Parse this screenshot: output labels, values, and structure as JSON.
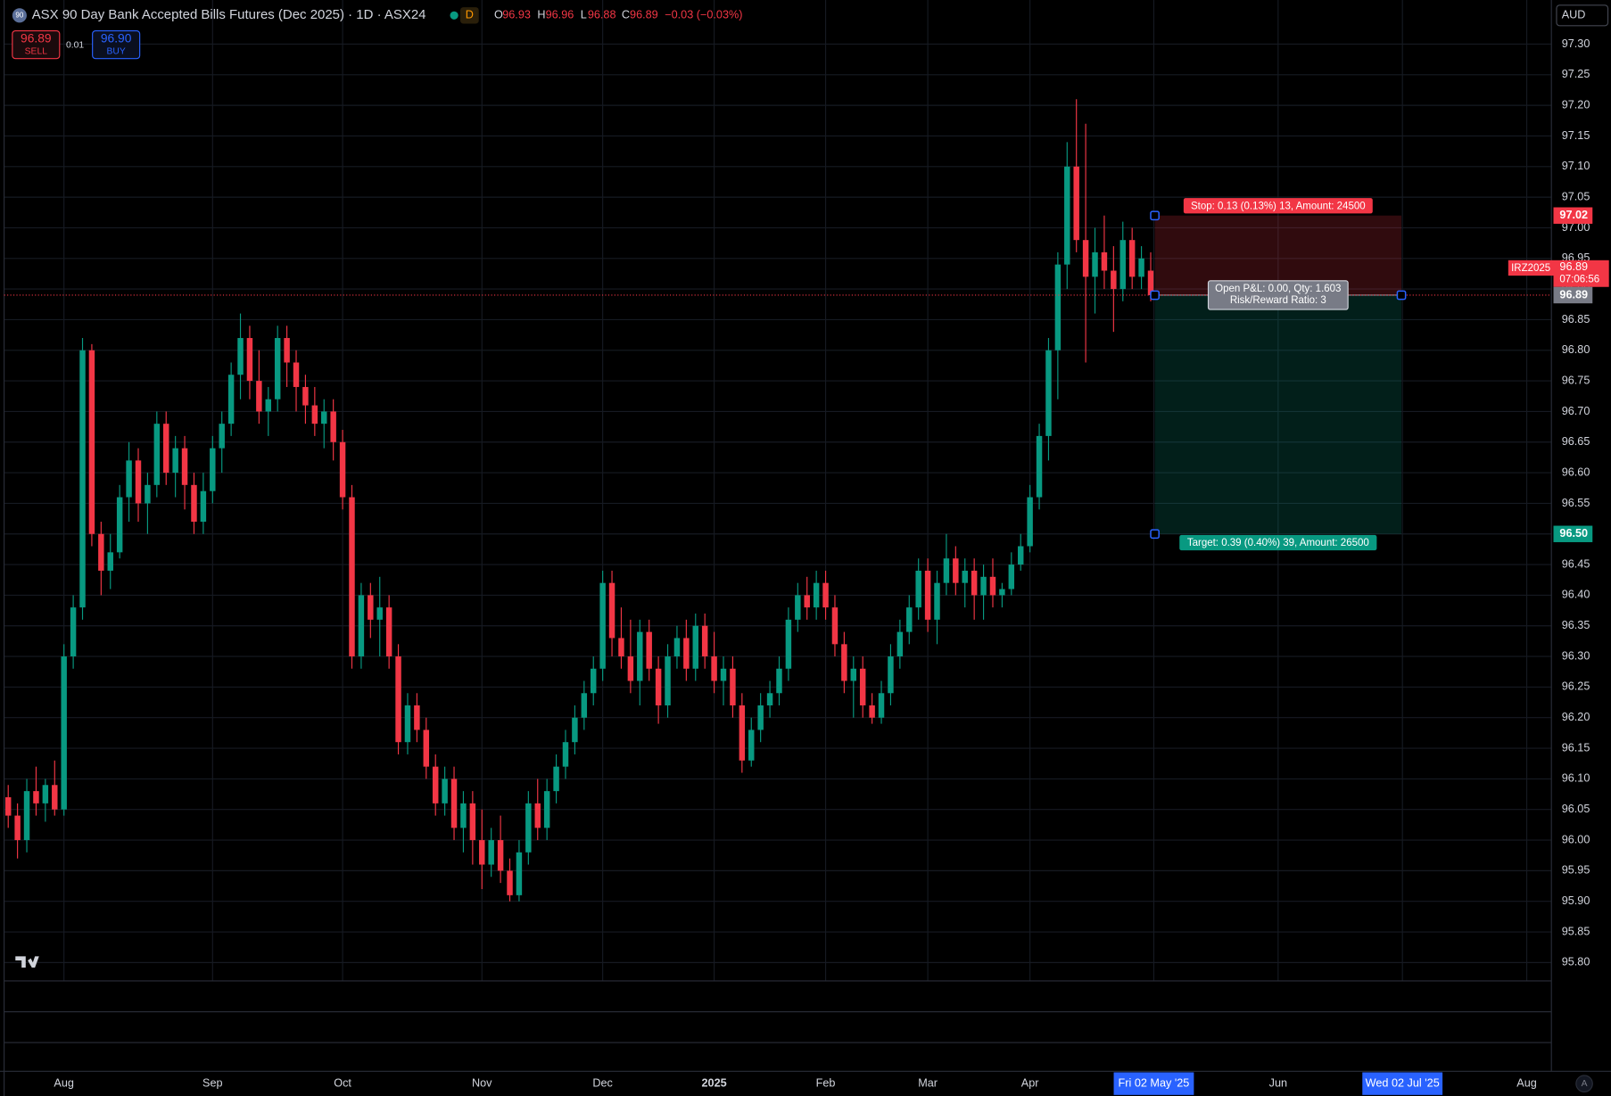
{
  "header": {
    "icon": "90",
    "title": "ASX 90 Day Bank Accepted Bills Futures (Dec 2025) · 1D · ASX24",
    "badge": "D",
    "ohlc": [
      {
        "label": "O",
        "value": "96.93"
      },
      {
        "label": "H",
        "value": "96.96"
      },
      {
        "label": "L",
        "value": "96.88"
      },
      {
        "label": "C",
        "value": "96.89"
      }
    ],
    "change": "−0.03 (−0.03%)",
    "sell": {
      "price": "96.89",
      "label": "SELL"
    },
    "spread": "0.01",
    "buy": {
      "price": "96.90",
      "label": "BUY"
    },
    "currency": "AUD"
  },
  "controls": {
    "auto": "A"
  },
  "chart_data": {
    "type": "candlestick",
    "colors": {
      "up": "#089981",
      "down": "#f23645"
    },
    "grid": true,
    "ylim": [
      95.77,
      97.372
    ],
    "yticks": [
      {
        "value": 95.8,
        "label": "95.80"
      },
      95.85,
      {
        "value": 95.9,
        "label": "95.90"
      },
      95.95,
      {
        "value": 96,
        "label": "96.00"
      },
      96.05,
      {
        "value": 96.1,
        "label": "96.10"
      },
      96.15,
      {
        "value": 96.2,
        "label": "96.20"
      },
      96.25,
      {
        "value": 96.3,
        "label": "96.30"
      },
      96.35,
      {
        "value": 96.4,
        "label": "96.40"
      },
      96.45,
      {
        "value": 96.5,
        "label": "96.50"
      },
      96.55,
      {
        "value": 96.6,
        "label": "96.60"
      },
      96.65,
      {
        "value": 96.7,
        "label": "96.70"
      },
      96.75,
      {
        "value": 96.8,
        "label": "96.80"
      },
      96.85,
      {
        "value": 96.9,
        "label": "96.90"
      },
      96.95,
      {
        "value": 97,
        "label": "97.00"
      },
      97.05,
      {
        "value": 97.1,
        "label": "97.10"
      },
      97.15,
      {
        "value": 97.2,
        "label": "97.20"
      },
      97.25,
      {
        "value": 97.3,
        "label": "97.30"
      }
    ],
    "groups": [
      {
        "label": null,
        "candles": [
          [
            96.07,
            96.09,
            96.02,
            96.04
          ],
          [
            96.04,
            96.06,
            95.97,
            96.0
          ],
          [
            96.0,
            96.1,
            95.98,
            96.08
          ],
          [
            96.08,
            96.12,
            96.04,
            96.06
          ],
          [
            96.06,
            96.1,
            96.03,
            96.09
          ],
          [
            96.09,
            96.13,
            96.04,
            96.05
          ]
        ]
      },
      {
        "label": "Aug",
        "candles": [
          [
            96.05,
            96.32,
            96.04,
            96.3
          ],
          [
            96.3,
            96.4,
            96.28,
            96.38
          ],
          [
            96.38,
            96.82,
            96.36,
            96.8
          ],
          [
            96.8,
            96.81,
            96.48,
            96.5
          ],
          [
            96.5,
            96.52,
            96.4,
            96.44
          ],
          [
            96.44,
            96.5,
            96.41,
            96.47
          ],
          [
            96.47,
            96.58,
            96.46,
            96.56
          ],
          [
            96.56,
            96.65,
            96.52,
            96.62
          ],
          [
            96.62,
            96.64,
            96.52,
            96.55
          ],
          [
            96.55,
            96.6,
            96.5,
            96.58
          ],
          [
            96.58,
            96.7,
            96.56,
            96.68
          ],
          [
            96.68,
            96.7,
            96.58,
            96.6
          ],
          [
            96.6,
            96.66,
            96.56,
            96.64
          ],
          [
            96.64,
            96.66,
            96.54,
            96.58
          ],
          [
            96.58,
            96.6,
            96.5,
            96.52
          ],
          [
            96.52,
            96.6,
            96.5,
            96.57
          ]
        ]
      },
      {
        "label": "Sep",
        "candles": [
          [
            96.57,
            96.66,
            96.55,
            96.64
          ],
          [
            96.64,
            96.7,
            96.6,
            96.68
          ],
          [
            96.68,
            96.78,
            96.66,
            96.76
          ],
          [
            96.76,
            96.86,
            96.72,
            96.82
          ],
          [
            96.82,
            96.84,
            96.72,
            96.75
          ],
          [
            96.75,
            96.8,
            96.68,
            96.7
          ],
          [
            96.7,
            96.74,
            96.66,
            96.72
          ],
          [
            96.72,
            96.84,
            96.7,
            96.82
          ],
          [
            96.82,
            96.84,
            96.74,
            96.78
          ],
          [
            96.78,
            96.8,
            96.7,
            96.74
          ],
          [
            96.74,
            96.76,
            96.68,
            96.71
          ],
          [
            96.71,
            96.74,
            96.66,
            96.68
          ],
          [
            96.68,
            96.72,
            96.64,
            96.7
          ],
          [
            96.7,
            96.72,
            96.62,
            96.65
          ]
        ]
      },
      {
        "label": "Oct",
        "candles": [
          [
            96.65,
            96.67,
            96.54,
            96.56
          ],
          [
            96.56,
            96.58,
            96.28,
            96.3
          ],
          [
            96.3,
            96.42,
            96.28,
            96.4
          ],
          [
            96.4,
            96.42,
            96.33,
            96.36
          ],
          [
            96.36,
            96.43,
            96.3,
            96.38
          ],
          [
            96.38,
            96.4,
            96.28,
            96.3
          ],
          [
            96.3,
            96.32,
            96.14,
            96.16
          ],
          [
            96.16,
            96.24,
            96.14,
            96.22
          ],
          [
            96.22,
            96.24,
            96.16,
            96.18
          ],
          [
            96.18,
            96.2,
            96.1,
            96.12
          ],
          [
            96.12,
            96.14,
            96.04,
            96.06
          ],
          [
            96.06,
            96.12,
            96.04,
            96.1
          ],
          [
            96.1,
            96.12,
            96.0,
            96.02
          ],
          [
            96.02,
            96.08,
            95.98,
            96.06
          ],
          [
            96.06,
            96.08,
            95.96,
            96.0
          ]
        ]
      },
      {
        "label": "Nov",
        "candles": [
          [
            96.0,
            96.05,
            95.92,
            95.96
          ],
          [
            95.96,
            96.02,
            95.94,
            96.0
          ],
          [
            96.0,
            96.04,
            95.93,
            95.95
          ],
          [
            95.95,
            95.97,
            95.9,
            95.91
          ],
          [
            95.91,
            96.0,
            95.9,
            95.98
          ],
          [
            95.98,
            96.08,
            95.96,
            96.06
          ],
          [
            96.06,
            96.1,
            96.0,
            96.02
          ],
          [
            96.02,
            96.1,
            96.0,
            96.08
          ],
          [
            96.08,
            96.14,
            96.06,
            96.12
          ],
          [
            96.12,
            96.18,
            96.1,
            96.16
          ],
          [
            96.16,
            96.22,
            96.14,
            96.2
          ],
          [
            96.2,
            96.26,
            96.18,
            96.24
          ],
          [
            96.24,
            96.3,
            96.22,
            96.28
          ]
        ]
      },
      {
        "label": "Dec",
        "candles": [
          [
            96.28,
            96.44,
            96.26,
            96.42
          ],
          [
            96.42,
            96.44,
            96.3,
            96.33
          ],
          [
            96.33,
            96.38,
            96.28,
            96.3
          ],
          [
            96.3,
            96.36,
            96.24,
            96.26
          ],
          [
            96.26,
            96.36,
            96.22,
            96.34
          ],
          [
            96.34,
            96.36,
            96.26,
            96.28
          ],
          [
            96.28,
            96.3,
            96.19,
            96.22
          ],
          [
            96.22,
            96.32,
            96.2,
            96.3
          ],
          [
            96.3,
            96.35,
            96.28,
            96.33
          ],
          [
            96.33,
            96.36,
            96.26,
            96.28
          ],
          [
            96.28,
            96.37,
            96.26,
            96.35
          ],
          [
            96.35,
            96.37,
            96.28,
            96.3
          ]
        ]
      },
      {
        "label": "2025",
        "candles": [
          [
            96.3,
            96.34,
            96.24,
            96.26
          ],
          [
            96.26,
            96.3,
            96.22,
            96.28
          ],
          [
            96.28,
            96.3,
            96.2,
            96.22
          ],
          [
            96.22,
            96.24,
            96.11,
            96.13
          ],
          [
            96.13,
            96.2,
            96.12,
            96.18
          ],
          [
            96.18,
            96.24,
            96.16,
            96.22
          ],
          [
            96.22,
            96.26,
            96.2,
            96.24
          ],
          [
            96.24,
            96.3,
            96.22,
            96.28
          ],
          [
            96.28,
            96.38,
            96.26,
            96.36
          ],
          [
            96.36,
            96.42,
            96.34,
            96.4
          ],
          [
            96.4,
            96.43,
            96.36,
            96.38
          ],
          [
            96.38,
            96.44,
            96.36,
            96.42
          ]
        ]
      },
      {
        "label": "Feb",
        "candles": [
          [
            96.42,
            96.44,
            96.36,
            96.38
          ],
          [
            96.38,
            96.4,
            96.3,
            96.32
          ],
          [
            96.32,
            96.34,
            96.24,
            96.26
          ],
          [
            96.26,
            96.3,
            96.2,
            96.28
          ],
          [
            96.28,
            96.3,
            96.2,
            96.22
          ],
          [
            96.22,
            96.24,
            96.19,
            96.2
          ],
          [
            96.2,
            96.26,
            96.19,
            96.24
          ],
          [
            96.24,
            96.32,
            96.22,
            96.3
          ],
          [
            96.3,
            96.36,
            96.28,
            96.34
          ],
          [
            96.34,
            96.4,
            96.32,
            96.38
          ],
          [
            96.38,
            96.46,
            96.36,
            96.44
          ]
        ]
      },
      {
        "label": "Mar",
        "candles": [
          [
            96.44,
            96.46,
            96.34,
            96.36
          ],
          [
            96.36,
            96.44,
            96.32,
            96.42
          ],
          [
            96.42,
            96.5,
            96.4,
            96.46
          ],
          [
            96.46,
            96.48,
            96.4,
            96.42
          ],
          [
            96.42,
            96.46,
            96.38,
            96.44
          ],
          [
            96.44,
            96.46,
            96.36,
            96.4
          ],
          [
            96.4,
            96.45,
            96.36,
            96.43
          ],
          [
            96.43,
            96.46,
            96.38,
            96.4
          ],
          [
            96.4,
            96.42,
            96.38,
            96.41
          ],
          [
            96.41,
            96.47,
            96.4,
            96.45
          ],
          [
            96.45,
            96.5,
            96.44,
            96.48
          ]
        ]
      },
      {
        "label": "Apr",
        "candles": [
          [
            96.48,
            96.58,
            96.47,
            96.56
          ],
          [
            96.56,
            96.68,
            96.54,
            96.66
          ],
          [
            96.66,
            96.82,
            96.62,
            96.8
          ],
          [
            96.8,
            96.96,
            96.72,
            96.94
          ],
          [
            96.94,
            97.14,
            96.9,
            97.1
          ],
          [
            97.1,
            97.21,
            96.96,
            96.98
          ],
          [
            96.98,
            97.17,
            96.78,
            96.92
          ],
          [
            96.92,
            97.0,
            96.86,
            96.96
          ],
          [
            96.96,
            97.02,
            96.9,
            96.93
          ],
          [
            96.93,
            96.97,
            96.83,
            96.9
          ],
          [
            96.9,
            97.01,
            96.88,
            96.98
          ],
          [
            96.98,
            97.0,
            96.9,
            96.92
          ],
          [
            96.92,
            96.97,
            96.9,
            96.95
          ],
          [
            96.93,
            96.96,
            96.88,
            96.89
          ]
        ]
      }
    ],
    "future_labels": [
      {
        "label": "Fri 02 May '25",
        "highlight": true
      },
      {
        "label": "Jun"
      },
      {
        "label": "Wed 02 Jul '25",
        "highlight": true
      },
      {
        "label": "Aug"
      }
    ],
    "symbol": "IRZ2025",
    "last_price": {
      "value": 96.89,
      "countdown": "07:06:56"
    },
    "stop": {
      "price": 97.02,
      "text": "Stop: 0.13 (0.13%) 13, Amount: 24500"
    },
    "entry": {
      "price": 96.89,
      "text": [
        "Open P&L: 0.00, Qty: 1.603",
        "Risk/Reward Ratio: 3"
      ]
    },
    "target": {
      "price": {
        "value": 96.5,
        "label": "96.50"
      },
      "text": "Target: 0.39 (0.40%) 39, Amount: 26500"
    }
  }
}
